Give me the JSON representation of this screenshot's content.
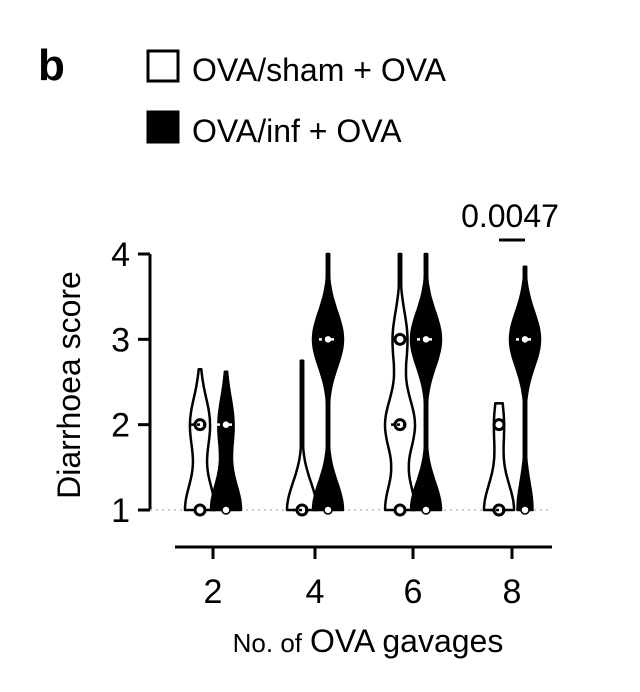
{
  "panel_label": "b",
  "chart_data": {
    "type": "violin",
    "title": "",
    "xlabel_prefix": "No. of",
    "xlabel_main": "OVA gavages",
    "ylabel": "Diarrhoea score",
    "categories": [
      "2",
      "4",
      "6",
      "8"
    ],
    "yticks": [
      "1",
      "2",
      "3",
      "4"
    ],
    "ylim": [
      1,
      4
    ],
    "grid": false,
    "baseline_dotted_at": 1,
    "legend_position": "top",
    "series": [
      {
        "name": "OVA/sham + OVA",
        "fill": "#ffffff",
        "stroke": "#000000",
        "groups": [
          {
            "category": "2",
            "min": 1,
            "max": 2.65,
            "median": 2,
            "points": [
              1,
              1,
              1,
              2,
              2
            ]
          },
          {
            "category": "4",
            "min": 1,
            "max": 2.75,
            "median": 1,
            "points": [
              1,
              1,
              1,
              1
            ]
          },
          {
            "category": "6",
            "min": 1,
            "max": 4,
            "median": 2,
            "points": [
              1,
              1,
              2,
              2,
              3
            ]
          },
          {
            "category": "8",
            "min": 1,
            "max": 2.25,
            "median": 1,
            "points": [
              1,
              1,
              1,
              2
            ]
          }
        ]
      },
      {
        "name": "OVA/inf + OVA",
        "fill": "#000000",
        "stroke": "#000000",
        "groups": [
          {
            "category": "2",
            "min": 1,
            "max": 2.62,
            "median": 2,
            "points": [
              1,
              1,
              2
            ]
          },
          {
            "category": "4",
            "min": 1,
            "max": 4,
            "median": 3,
            "points": [
              1,
              1,
              3,
              3
            ]
          },
          {
            "category": "6",
            "min": 1,
            "max": 4,
            "median": 3,
            "points": [
              1,
              1,
              3,
              3
            ]
          },
          {
            "category": "8",
            "min": 1,
            "max": 3.85,
            "median": 3,
            "points": [
              1,
              3,
              3
            ]
          }
        ]
      }
    ],
    "annotations": [
      {
        "text": "0.0047",
        "category": "8"
      }
    ]
  }
}
